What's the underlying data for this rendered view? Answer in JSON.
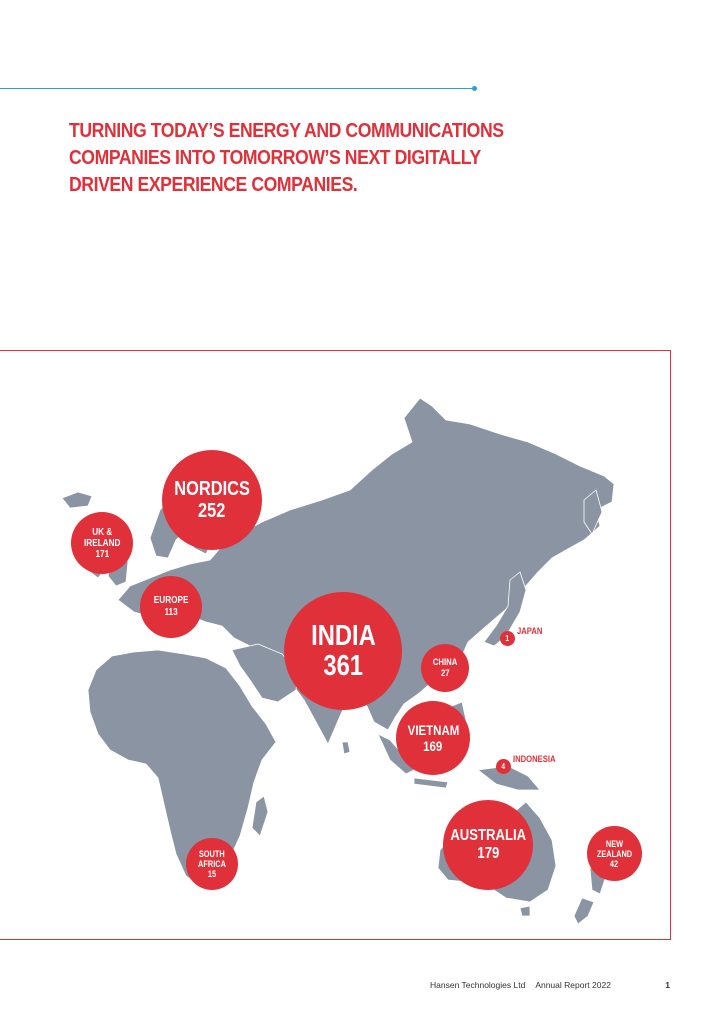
{
  "headline": {
    "lines": [
      "TURNING TODAY’S ENERGY AND COMMUNICATIONS",
      "COMPANIES INTO TOMORROW’S NEXT DIGITALLY",
      "DRIVEN EXPERIENCE COMPANIES."
    ]
  },
  "locations": {
    "nordics": {
      "name": "NORDICS",
      "value": "252"
    },
    "uk_ireland": {
      "name_1": "UK &",
      "name_2": "IRELAND",
      "value": "171"
    },
    "europe": {
      "name": "EUROPE",
      "value": "113"
    },
    "india": {
      "name": "INDIA",
      "value": "361"
    },
    "china": {
      "name": "CHINA",
      "value": "27"
    },
    "japan": {
      "name": "JAPAN",
      "value": "1"
    },
    "vietnam": {
      "name": "VIETNAM",
      "value": "169"
    },
    "indonesia": {
      "name": "INDONESIA",
      "value": "4"
    },
    "australia": {
      "name": "AUSTRALIA",
      "value": "179"
    },
    "new_zealand": {
      "name_1": "NEW",
      "name_2": "ZEALAND",
      "value": "42"
    },
    "south_africa": {
      "name_1": "SOUTH",
      "name_2": "AFRICA",
      "value": "15"
    }
  },
  "colors": {
    "accent": "#e0303a",
    "rule": "#2e9fd6",
    "land": "#8a94a2"
  },
  "footer": {
    "company": "Hansen Technologies Ltd",
    "report": "Annual Report 2022",
    "page": "1"
  }
}
